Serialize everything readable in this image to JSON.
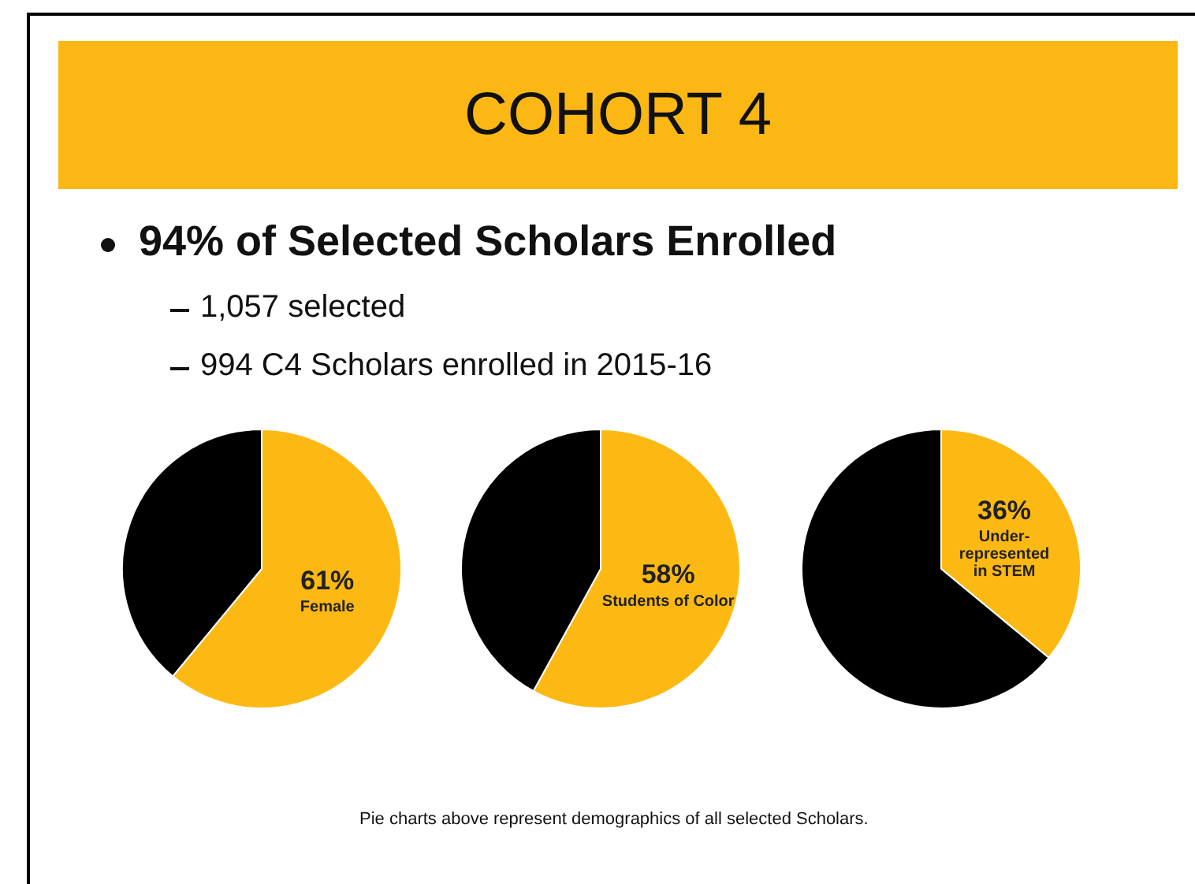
{
  "chart_data": [
    {
      "type": "other",
      "title": "COHORT 4",
      "subtitle": "94% of Selected Scholars Enrolled",
      "annotations": [
        "1,057 selected",
        "994 C4 Scholars enrolled in 2015-16",
        "Pie charts above represent demographics of all selected Scholars."
      ]
    },
    {
      "type": "pie",
      "categories": [
        "Female",
        null
      ],
      "values": [
        61,
        39
      ],
      "colors": [
        "#fdb913",
        "#000000"
      ],
      "value_labels": [
        "61%",
        null
      ],
      "legend": false
    },
    {
      "type": "pie",
      "categories": [
        "Students of Color",
        null
      ],
      "values": [
        58,
        42
      ],
      "colors": [
        "#fdb913",
        "#000000"
      ],
      "value_labels": [
        "58%",
        null
      ],
      "legend": false
    },
    {
      "type": "pie",
      "categories": [
        "Under-represented in STEM",
        null
      ],
      "values": [
        36,
        64
      ],
      "colors": [
        "#fdb913",
        "#000000"
      ],
      "value_labels": [
        "36%",
        null
      ],
      "legend": false
    }
  ]
}
